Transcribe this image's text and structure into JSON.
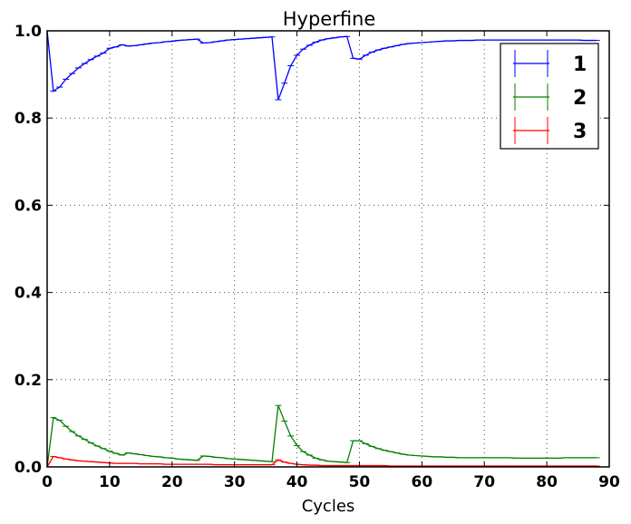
{
  "chart_data": {
    "type": "line",
    "title": "Hyperfine",
    "xlabel": "Cycles",
    "ylabel": "",
    "xlim": [
      0,
      90
    ],
    "ylim": [
      0.0,
      1.0
    ],
    "xticks": [
      "0",
      "10",
      "20",
      "30",
      "40",
      "50",
      "60",
      "70",
      "80",
      "90"
    ],
    "yticks": [
      "0.0",
      "0.2",
      "0.4",
      "0.6",
      "0.8",
      "1.0"
    ],
    "grid": true,
    "legend_position": "top-right",
    "x": [
      0,
      1,
      2,
      3,
      4,
      5,
      6,
      7,
      8,
      9,
      10,
      11,
      12,
      13,
      14,
      15,
      16,
      17,
      18,
      19,
      20,
      21,
      22,
      23,
      24,
      25,
      26,
      27,
      28,
      29,
      30,
      31,
      32,
      33,
      34,
      35,
      36,
      37,
      38,
      39,
      40,
      41,
      42,
      43,
      44,
      45,
      46,
      47,
      48,
      49,
      50,
      51,
      52,
      53,
      54,
      55,
      56,
      57,
      58,
      59,
      60,
      61,
      62,
      63,
      64,
      65,
      66,
      67,
      68,
      69,
      70,
      71,
      72,
      73,
      74,
      75,
      76,
      77,
      78,
      79,
      80,
      81,
      82,
      83,
      84,
      85,
      86,
      87,
      88
    ],
    "series": [
      {
        "name": "1",
        "color": "#0000ff",
        "values": [
          1.0,
          0.862,
          0.871,
          0.889,
          0.902,
          0.915,
          0.925,
          0.934,
          0.942,
          0.949,
          0.96,
          0.963,
          0.968,
          0.965,
          0.966,
          0.968,
          0.97,
          0.972,
          0.973,
          0.975,
          0.976,
          0.978,
          0.979,
          0.98,
          0.981,
          0.972,
          0.973,
          0.975,
          0.977,
          0.979,
          0.98,
          0.981,
          0.982,
          0.983,
          0.984,
          0.985,
          0.986,
          0.842,
          0.88,
          0.92,
          0.944,
          0.958,
          0.967,
          0.974,
          0.979,
          0.982,
          0.984,
          0.986,
          0.987,
          0.937,
          0.935,
          0.944,
          0.951,
          0.956,
          0.96,
          0.963,
          0.966,
          0.969,
          0.971,
          0.972,
          0.973,
          0.974,
          0.975,
          0.976,
          0.977,
          0.977,
          0.978,
          0.978,
          0.978,
          0.979,
          0.979,
          0.979,
          0.979,
          0.979,
          0.979,
          0.979,
          0.979,
          0.979,
          0.979,
          0.979,
          0.979,
          0.979,
          0.979,
          0.979,
          0.979,
          0.979,
          0.978,
          0.978,
          0.978
        ]
      },
      {
        "name": "2",
        "color": "#008000",
        "values": [
          0.0,
          0.113,
          0.107,
          0.093,
          0.081,
          0.071,
          0.063,
          0.055,
          0.048,
          0.042,
          0.036,
          0.031,
          0.027,
          0.032,
          0.03,
          0.028,
          0.026,
          0.024,
          0.023,
          0.021,
          0.02,
          0.018,
          0.017,
          0.016,
          0.015,
          0.025,
          0.024,
          0.022,
          0.021,
          0.019,
          0.018,
          0.017,
          0.016,
          0.015,
          0.014,
          0.013,
          0.012,
          0.141,
          0.105,
          0.071,
          0.049,
          0.035,
          0.027,
          0.02,
          0.016,
          0.013,
          0.012,
          0.011,
          0.01,
          0.06,
          0.06,
          0.053,
          0.047,
          0.042,
          0.038,
          0.035,
          0.032,
          0.029,
          0.027,
          0.026,
          0.025,
          0.024,
          0.023,
          0.023,
          0.022,
          0.022,
          0.021,
          0.021,
          0.021,
          0.021,
          0.021,
          0.021,
          0.021,
          0.021,
          0.021,
          0.02,
          0.02,
          0.02,
          0.02,
          0.02,
          0.02,
          0.02,
          0.02,
          0.021,
          0.021,
          0.021,
          0.021,
          0.021,
          0.021
        ]
      },
      {
        "name": "3",
        "color": "#ff0000",
        "values": [
          0.0,
          0.024,
          0.021,
          0.018,
          0.016,
          0.014,
          0.013,
          0.012,
          0.011,
          0.01,
          0.009,
          0.008,
          0.008,
          0.008,
          0.008,
          0.007,
          0.007,
          0.007,
          0.007,
          0.006,
          0.006,
          0.006,
          0.006,
          0.006,
          0.006,
          0.006,
          0.006,
          0.005,
          0.005,
          0.005,
          0.005,
          0.005,
          0.005,
          0.005,
          0.005,
          0.005,
          0.005,
          0.016,
          0.011,
          0.008,
          0.006,
          0.005,
          0.004,
          0.004,
          0.003,
          0.003,
          0.003,
          0.003,
          0.003,
          0.003,
          0.003,
          0.003,
          0.003,
          0.003,
          0.003,
          0.002,
          0.002,
          0.002,
          0.002,
          0.002,
          0.002,
          0.002,
          0.002,
          0.002,
          0.002,
          0.002,
          0.002,
          0.002,
          0.002,
          0.002,
          0.002,
          0.002,
          0.002,
          0.002,
          0.002,
          0.002,
          0.002,
          0.002,
          0.002,
          0.002,
          0.002,
          0.002,
          0.002,
          0.002,
          0.002,
          0.002,
          0.002,
          0.002,
          0.002
        ]
      }
    ]
  }
}
